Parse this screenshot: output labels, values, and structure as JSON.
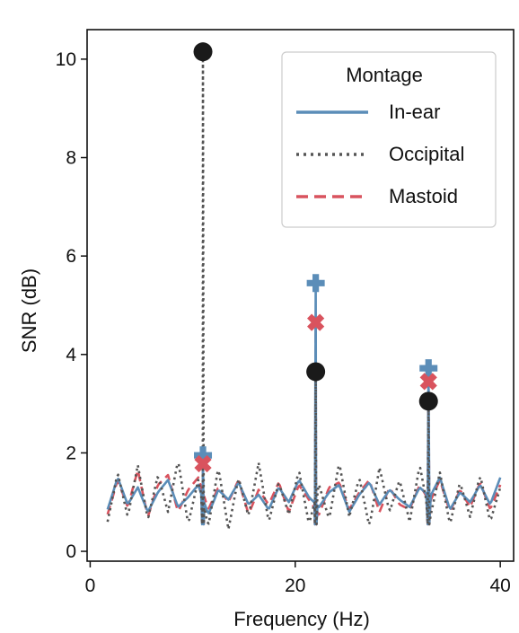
{
  "chart_data": {
    "type": "line",
    "xlabel": "Frequency (Hz)",
    "ylabel": "SNR (dB)",
    "xlim": [
      -0.3,
      41.3
    ],
    "ylim": [
      -0.2,
      10.6
    ],
    "xticks": [
      0,
      20,
      40
    ],
    "yticks": [
      0,
      2,
      4,
      6,
      8,
      10
    ],
    "grid": false,
    "legend": {
      "title": "Montage",
      "placement": "top-right"
    },
    "peak_frequencies": [
      11,
      22,
      33
    ],
    "series": [
      {
        "name": "In-ear",
        "color": "#5b8db8",
        "linestyle": "solid",
        "marker": "plus",
        "baseline": [
          0.85,
          1.5,
          0.95,
          1.3,
          0.8,
          1.2,
          1.45,
          0.9,
          1.1,
          1.35,
          0.75,
          1.25,
          1.05,
          1.4,
          0.95,
          1.15,
          0.85,
          1.3,
          1.0,
          1.45,
          1.1,
          0.9,
          1.2,
          1.35,
          0.8,
          1.15,
          1.4,
          0.95,
          1.25,
          1.05,
          0.9,
          1.3,
          1.1,
          1.5,
          0.85,
          1.2,
          1.0,
          1.35,
          0.95,
          1.5
        ],
        "peaks": [
          {
            "x": 11,
            "y": 1.95
          },
          {
            "x": 22,
            "y": 5.45
          },
          {
            "x": 33,
            "y": 3.72
          }
        ]
      },
      {
        "name": "Occipital",
        "color": "#555555",
        "linestyle": "dotted",
        "marker": "circle",
        "baseline": [
          0.6,
          1.6,
          0.7,
          1.75,
          0.65,
          1.55,
          0.8,
          1.85,
          0.55,
          1.45,
          0.5,
          1.7,
          0.45,
          1.5,
          0.7,
          1.8,
          0.6,
          1.4,
          0.75,
          1.65,
          0.55,
          1.35,
          0.65,
          1.8,
          0.7,
          1.5,
          0.5,
          1.7,
          0.8,
          1.45,
          0.6,
          1.75,
          0.65,
          1.6,
          0.55,
          1.4,
          0.7,
          1.55,
          0.6,
          1.3
        ],
        "peaks": [
          {
            "x": 11,
            "y": 10.15
          },
          {
            "x": 22,
            "y": 3.65
          },
          {
            "x": 33,
            "y": 3.05
          }
        ]
      },
      {
        "name": "Mastoid",
        "color": "#d9535e",
        "linestyle": "dashed",
        "marker": "x",
        "baseline": [
          0.75,
          1.45,
          0.9,
          1.65,
          0.7,
          1.35,
          1.55,
          0.8,
          1.25,
          1.5,
          0.85,
          1.3,
          1.0,
          1.45,
          0.75,
          1.25,
          0.95,
          1.4,
          0.8,
          1.35,
          1.05,
          0.75,
          1.3,
          1.4,
          0.85,
          1.2,
          1.45,
          0.8,
          1.3,
          0.95,
          0.85,
          1.35,
          1.0,
          1.45,
          0.8,
          1.25,
          0.9,
          1.4,
          0.85,
          1.35
        ],
        "peaks": [
          {
            "x": 11,
            "y": 1.78
          },
          {
            "x": 22,
            "y": 4.65
          },
          {
            "x": 33,
            "y": 3.45
          }
        ]
      }
    ]
  }
}
